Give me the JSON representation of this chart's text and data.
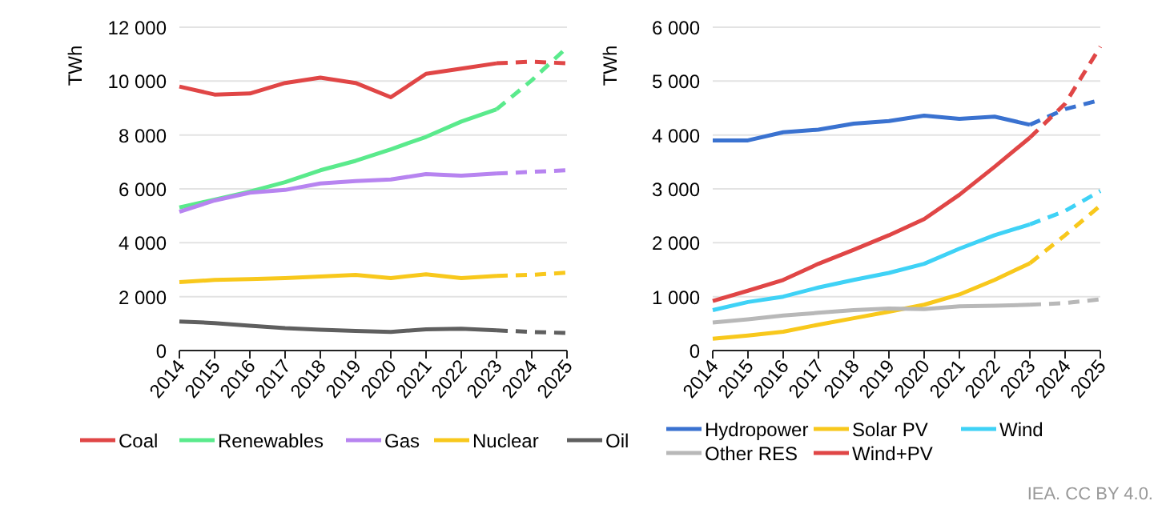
{
  "chart_data": [
    {
      "type": "line",
      "ylabel": "TWh",
      "categories": [
        "2014",
        "2015",
        "2016",
        "2017",
        "2018",
        "2019",
        "2020",
        "2021",
        "2022",
        "2023",
        "2024",
        "2025"
      ],
      "ylim": [
        0,
        12000
      ],
      "yticks": [
        {
          "value": 0,
          "label": "0"
        },
        {
          "value": 2000,
          "label": "2 000"
        },
        {
          "value": 4000,
          "label": "4 000"
        },
        {
          "value": 6000,
          "label": "6 000"
        },
        {
          "value": 8000,
          "label": "8 000"
        },
        {
          "value": 10000,
          "label": "10 000"
        },
        {
          "value": 12000,
          "label": "12 000"
        }
      ],
      "grid": "y",
      "legend": "bottom",
      "line_style": "solid",
      "series": [
        {
          "name": "Coal",
          "color": "#e04646",
          "values": [
            9800,
            9500,
            9540,
            9930,
            10130,
            9930,
            9400,
            10270,
            10460,
            10660,
            null,
            null
          ]
        },
        {
          "name": "Renewables",
          "color": "#5aea8c",
          "values": [
            5310,
            5600,
            5900,
            6250,
            6690,
            7040,
            7470,
            7930,
            8500,
            8950,
            null,
            null
          ]
        },
        {
          "name": "Gas",
          "color": "#b784f0",
          "values": [
            5150,
            5570,
            5860,
            5960,
            6200,
            6290,
            6350,
            6550,
            6490,
            6570,
            null,
            null
          ]
        },
        {
          "name": "Nuclear",
          "color": "#f8c81c",
          "values": [
            2540,
            2620,
            2650,
            2690,
            2750,
            2810,
            2690,
            2830,
            2690,
            2770,
            null,
            null
          ]
        },
        {
          "name": "Oil",
          "color": "#5f5f5f",
          "values": [
            1080,
            1020,
            920,
            830,
            770,
            730,
            690,
            790,
            810,
            750,
            null,
            null
          ]
        },
        {
          "color": "#e04646",
          "line_style": "dashed",
          "values": [
            null,
            null,
            null,
            null,
            null,
            null,
            null,
            null,
            null,
            10660,
            10720,
            10660
          ]
        },
        {
          "color": "#5aea8c",
          "line_style": "dashed",
          "values": [
            null,
            null,
            null,
            null,
            null,
            null,
            null,
            null,
            null,
            8950,
            10030,
            11250
          ]
        },
        {
          "color": "#b784f0",
          "line_style": "dashed",
          "values": [
            null,
            null,
            null,
            null,
            null,
            null,
            null,
            null,
            null,
            6570,
            6630,
            6690
          ]
        },
        {
          "color": "#f8c81c",
          "line_style": "dashed",
          "values": [
            null,
            null,
            null,
            null,
            null,
            null,
            null,
            null,
            null,
            2770,
            2810,
            2890
          ]
        },
        {
          "color": "#5f5f5f",
          "line_style": "dashed",
          "values": [
            null,
            null,
            null,
            null,
            null,
            null,
            null,
            null,
            null,
            750,
            690,
            650
          ]
        }
      ]
    },
    {
      "type": "line",
      "ylabel": "TWh",
      "categories": [
        "2014",
        "2015",
        "2016",
        "2017",
        "2018",
        "2019",
        "2020",
        "2021",
        "2022",
        "2023",
        "2024",
        "2025"
      ],
      "ylim": [
        0,
        6000
      ],
      "yticks": [
        0,
        {
          "value": 1000,
          "label": "1 000"
        },
        {
          "value": 2000,
          "label": "2 000"
        },
        {
          "value": 3000,
          "label": "3 000"
        },
        {
          "value": 4000,
          "label": "4 000"
        },
        {
          "value": 5000,
          "label": "5 000"
        },
        {
          "value": 6000,
          "label": "6 000"
        }
      ],
      "grid": "y",
      "legend": "bottom",
      "line_style": "solid",
      "annotations": [
        "IEA. CC BY 4.0."
      ],
      "series": [
        {
          "name": "Hydropower",
          "color": "#3a72d0",
          "values": [
            3900,
            3900,
            4050,
            4100,
            4210,
            4260,
            4360,
            4300,
            4340,
            4190,
            null,
            null
          ]
        },
        {
          "name": "Solar PV",
          "color": "#f8c81c",
          "values": [
            220,
            280,
            350,
            480,
            600,
            720,
            850,
            1040,
            1310,
            1620,
            null,
            null
          ]
        },
        {
          "name": "Wind",
          "color": "#3fd2f6",
          "values": [
            750,
            900,
            1000,
            1170,
            1310,
            1440,
            1610,
            1890,
            2140,
            2340,
            null,
            null
          ]
        },
        {
          "name": "Other RES",
          "color": "#b8b8b8",
          "values": [
            520,
            580,
            650,
            700,
            750,
            780,
            770,
            820,
            830,
            850,
            null,
            null
          ]
        },
        {
          "name": "Wind+PV",
          "color": "#e04646",
          "values": [
            920,
            1110,
            1310,
            1610,
            1870,
            2140,
            2440,
            2890,
            3410,
            3950,
            null,
            null
          ]
        },
        {
          "color": "#3a72d0",
          "line_style": "dashed",
          "values": [
            null,
            null,
            null,
            null,
            null,
            null,
            null,
            null,
            null,
            4190,
            4480,
            4650
          ]
        },
        {
          "color": "#f8c81c",
          "line_style": "dashed",
          "values": [
            null,
            null,
            null,
            null,
            null,
            null,
            null,
            null,
            null,
            1620,
            2140,
            2690
          ]
        },
        {
          "color": "#3fd2f6",
          "line_style": "dashed",
          "values": [
            null,
            null,
            null,
            null,
            null,
            null,
            null,
            null,
            null,
            2340,
            2590,
            2960
          ]
        },
        {
          "color": "#b8b8b8",
          "line_style": "dashed",
          "values": [
            null,
            null,
            null,
            null,
            null,
            null,
            null,
            null,
            null,
            850,
            880,
            950
          ]
        },
        {
          "color": "#e04646",
          "line_style": "dashed",
          "values": [
            null,
            null,
            null,
            null,
            null,
            null,
            null,
            null,
            null,
            3950,
            4580,
            5640
          ]
        }
      ]
    }
  ]
}
